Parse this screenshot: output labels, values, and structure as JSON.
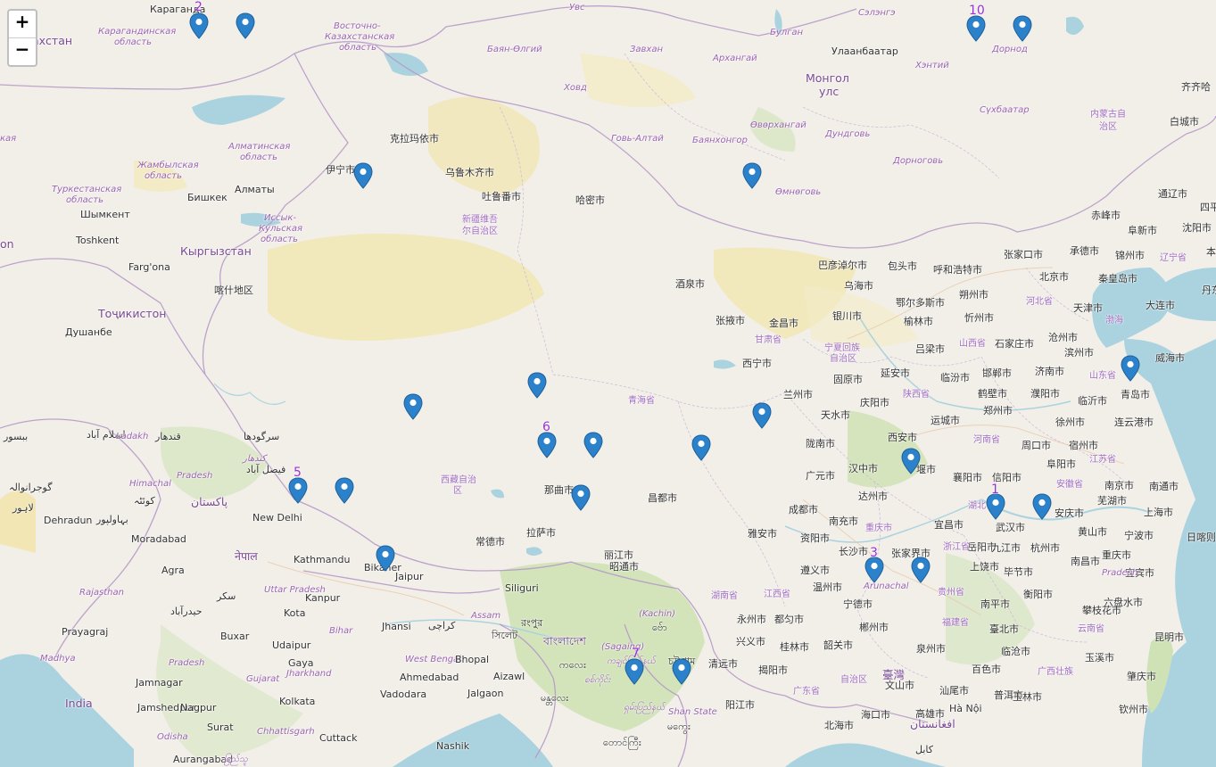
{
  "zoom": {
    "in_label": "+",
    "out_label": "−"
  },
  "labels": [
    {
      "t": "Караганда",
      "c": "city"
    },
    {
      "t": "ахстан",
      "c": "country"
    },
    {
      "t": "Карагандинская",
      "c": "region"
    },
    {
      "t": "область",
      "c": "region"
    },
    {
      "t": "Восточно-",
      "c": "region"
    },
    {
      "t": "Казахстанская",
      "c": "region"
    },
    {
      "t": "область",
      "c": "region"
    },
    {
      "t": "Баян-Өлгий",
      "c": "region"
    },
    {
      "t": "Увс",
      "c": "region"
    },
    {
      "t": "Завхан",
      "c": "region"
    },
    {
      "t": "Ховд",
      "c": "region"
    },
    {
      "t": "Булган",
      "c": "region"
    },
    {
      "t": "Сэлэнгэ",
      "c": "region"
    },
    {
      "t": "Улаанбаатар",
      "c": "city"
    },
    {
      "t": "Архангай",
      "c": "region"
    },
    {
      "t": "Монгол",
      "c": "country"
    },
    {
      "t": "улс",
      "c": "country"
    },
    {
      "t": "Хэнтий",
      "c": "region"
    },
    {
      "t": "Дорнод",
      "c": "region"
    },
    {
      "t": "Сүхбаатар",
      "c": "region"
    },
    {
      "t": "Өвөрхангай",
      "c": "region"
    },
    {
      "t": "Дундговь",
      "c": "region"
    },
    {
      "t": "Говь-Алтай",
      "c": "region"
    },
    {
      "t": "Баянхонгор",
      "c": "region"
    },
    {
      "t": "Дорноговь",
      "c": "region"
    },
    {
      "t": "Өмнөговь",
      "c": "region"
    },
    {
      "t": "内蒙古自",
      "c": "region-cn"
    },
    {
      "t": "治区",
      "c": "region-cn"
    },
    {
      "t": "白城市",
      "c": "city"
    },
    {
      "t": "齐齐哈",
      "c": "city"
    },
    {
      "t": "кая",
      "c": "region"
    },
    {
      "t": "克拉玛依市",
      "c": "city"
    },
    {
      "t": "Алматинская",
      "c": "region"
    },
    {
      "t": "область",
      "c": "region"
    },
    {
      "t": "Жамбылская",
      "c": "region"
    },
    {
      "t": "область",
      "c": "region"
    },
    {
      "t": "伊宁市",
      "c": "city"
    },
    {
      "t": "乌鲁木齐市",
      "c": "city"
    },
    {
      "t": "吐鲁番市",
      "c": "city"
    },
    {
      "t": "哈密市",
      "c": "city"
    },
    {
      "t": "Туркестанская",
      "c": "region"
    },
    {
      "t": "область",
      "c": "region"
    },
    {
      "t": "Бишкек",
      "c": "city"
    },
    {
      "t": "Алматы",
      "c": "city"
    },
    {
      "t": "Шымкент",
      "c": "city"
    },
    {
      "t": "Иссык-",
      "c": "region"
    },
    {
      "t": "Кульская",
      "c": "region"
    },
    {
      "t": "область",
      "c": "region"
    },
    {
      "t": "新疆维吾",
      "c": "region-cn"
    },
    {
      "t": "尔自治区",
      "c": "region-cn"
    },
    {
      "t": "Toshkent",
      "c": "city"
    },
    {
      "t": "Кыргызстан",
      "c": "country"
    },
    {
      "t": "on",
      "c": "country"
    },
    {
      "t": "Farg'ona",
      "c": "city"
    },
    {
      "t": "喀什地区",
      "c": "city"
    },
    {
      "t": "Тоҷикистон",
      "c": "country"
    },
    {
      "t": "Душанбе",
      "c": "city"
    },
    {
      "t": "通辽市",
      "c": "city"
    },
    {
      "t": "四平",
      "c": "city"
    },
    {
      "t": "赤峰市",
      "c": "city"
    },
    {
      "t": "阜新市",
      "c": "city"
    },
    {
      "t": "沈阳市",
      "c": "city"
    },
    {
      "t": "本",
      "c": "city"
    },
    {
      "t": "张家口市",
      "c": "city"
    },
    {
      "t": "承德市",
      "c": "city"
    },
    {
      "t": "锦州市",
      "c": "city"
    },
    {
      "t": "辽宁省",
      "c": "region-cn"
    },
    {
      "t": "巴彦淖尔市",
      "c": "city"
    },
    {
      "t": "包头市",
      "c": "city"
    },
    {
      "t": "呼和浩特市",
      "c": "city"
    },
    {
      "t": "北京市",
      "c": "city"
    },
    {
      "t": "秦皇岛市",
      "c": "city"
    },
    {
      "t": "丹东",
      "c": "city"
    },
    {
      "t": "乌海市",
      "c": "city"
    },
    {
      "t": "朔州市",
      "c": "city"
    },
    {
      "t": "河北省",
      "c": "region-cn"
    },
    {
      "t": "鄂尔多斯市",
      "c": "city"
    },
    {
      "t": "天津市",
      "c": "city"
    },
    {
      "t": "大连市",
      "c": "city"
    },
    {
      "t": "酒泉市",
      "c": "city"
    },
    {
      "t": "银川市",
      "c": "city"
    },
    {
      "t": "忻州市",
      "c": "city"
    },
    {
      "t": "渤海",
      "c": "region-cn"
    },
    {
      "t": "榆林市",
      "c": "city"
    },
    {
      "t": "沧州市",
      "c": "city"
    },
    {
      "t": "张掖市",
      "c": "city"
    },
    {
      "t": "金昌市",
      "c": "city"
    },
    {
      "t": "山西省",
      "c": "region-cn"
    },
    {
      "t": "石家庄市",
      "c": "city"
    },
    {
      "t": "甘肃省",
      "c": "region-cn"
    },
    {
      "t": "宁夏回族",
      "c": "region-cn"
    },
    {
      "t": "自治区",
      "c": "region-cn"
    },
    {
      "t": "吕梁市",
      "c": "city"
    },
    {
      "t": "滨州市",
      "c": "city"
    },
    {
      "t": "威海市",
      "c": "city"
    },
    {
      "t": "西宁市",
      "c": "city"
    },
    {
      "t": "固原市",
      "c": "city"
    },
    {
      "t": "延安市",
      "c": "city"
    },
    {
      "t": "临汾市",
      "c": "city"
    },
    {
      "t": "邯郸市",
      "c": "city"
    },
    {
      "t": "济南市",
      "c": "city"
    },
    {
      "t": "山东省",
      "c": "region-cn"
    },
    {
      "t": "兰州市",
      "c": "city"
    },
    {
      "t": "鹤壁市",
      "c": "city"
    },
    {
      "t": "濮阳市",
      "c": "city"
    },
    {
      "t": "青岛市",
      "c": "city"
    },
    {
      "t": "陕西省",
      "c": "region-cn"
    },
    {
      "t": "青海省",
      "c": "region-cn"
    },
    {
      "t": "庆阳市",
      "c": "city"
    },
    {
      "t": "临沂市",
      "c": "city"
    },
    {
      "t": "天水市",
      "c": "city"
    },
    {
      "t": "郑州市",
      "c": "city"
    },
    {
      "t": "运城市",
      "c": "city"
    },
    {
      "t": "徐州市",
      "c": "city"
    },
    {
      "t": "连云港市",
      "c": "city"
    },
    {
      "t": "西安市",
      "c": "city"
    },
    {
      "t": "陇南市",
      "c": "city"
    },
    {
      "t": "河南省",
      "c": "region-cn"
    },
    {
      "t": "周口市",
      "c": "city"
    },
    {
      "t": "宿州市",
      "c": "city"
    },
    {
      "t": "汉中市",
      "c": "city"
    },
    {
      "t": "堰市",
      "c": "city"
    },
    {
      "t": "阜阳市",
      "c": "city"
    },
    {
      "t": "江苏省",
      "c": "region-cn"
    },
    {
      "t": "西藏自治",
      "c": "region-cn"
    },
    {
      "t": "区",
      "c": "region-cn"
    },
    {
      "t": "广元市",
      "c": "city"
    },
    {
      "t": "襄阳市",
      "c": "city"
    },
    {
      "t": "信阳市",
      "c": "city"
    },
    {
      "t": "南京市",
      "c": "city"
    },
    {
      "t": "南通市",
      "c": "city"
    },
    {
      "t": "安徽省",
      "c": "region-cn"
    },
    {
      "t": "达州市",
      "c": "city"
    },
    {
      "t": "那曲市",
      "c": "city"
    },
    {
      "t": "昌都市",
      "c": "city"
    },
    {
      "t": "湖北",
      "c": "region-cn"
    },
    {
      "t": "芜湖市",
      "c": "city"
    },
    {
      "t": "成都市",
      "c": "city"
    },
    {
      "t": "武汉市",
      "c": "city"
    },
    {
      "t": "安庆市",
      "c": "city"
    },
    {
      "t": "上海市",
      "c": "city"
    },
    {
      "t": "南充市",
      "c": "city"
    },
    {
      "t": "宜昌市",
      "c": "city"
    },
    {
      "t": "黄山市",
      "c": "city"
    },
    {
      "t": "拉萨市",
      "c": "city"
    },
    {
      "t": "雅安市",
      "c": "city"
    },
    {
      "t": "资阳市",
      "c": "city"
    },
    {
      "t": "重庆市",
      "c": "region-cn"
    },
    {
      "t": "张家界市",
      "c": "city"
    },
    {
      "t": "岳阳市",
      "c": "city"
    },
    {
      "t": "九江市",
      "c": "city"
    },
    {
      "t": "杭州市",
      "c": "city"
    },
    {
      "t": "宁波市",
      "c": "city"
    },
    {
      "t": "日喀则市",
      "c": "city"
    },
    {
      "t": "常德市",
      "c": "city"
    },
    {
      "t": "浙江省",
      "c": "region-cn"
    },
    {
      "t": "重庆市",
      "c": "city"
    },
    {
      "t": "长沙市",
      "c": "city"
    },
    {
      "t": "上饶市",
      "c": "city"
    },
    {
      "t": "南昌市",
      "c": "city"
    },
    {
      "t": "宜宾市",
      "c": "city"
    },
    {
      "t": "毕节市",
      "c": "city"
    },
    {
      "t": "遵义市",
      "c": "city"
    },
    {
      "t": "温州市",
      "c": "city"
    },
    {
      "t": "Arunachal",
      "c": "region"
    },
    {
      "t": "Pradesh",
      "c": "region"
    },
    {
      "t": "丽江市",
      "c": "city"
    },
    {
      "t": "昭通市",
      "c": "city"
    },
    {
      "t": "湖南省",
      "c": "region-cn"
    },
    {
      "t": "江西省",
      "c": "region-cn"
    },
    {
      "t": "贵州省",
      "c": "region-cn"
    },
    {
      "t": "衡阳市",
      "c": "city"
    },
    {
      "t": "宁德市",
      "c": "city"
    },
    {
      "t": "南平市",
      "c": "city"
    },
    {
      "t": "六盘水市",
      "c": "city"
    },
    {
      "t": "攀枝花市",
      "c": "city"
    },
    {
      "t": "都匀市",
      "c": "city"
    },
    {
      "t": "永州市",
      "c": "city"
    },
    {
      "t": "郴州市",
      "c": "city"
    },
    {
      "t": "福建省",
      "c": "region-cn"
    },
    {
      "t": "臺北市",
      "c": "city"
    },
    {
      "t": "云南省",
      "c": "region-cn"
    },
    {
      "t": "昆明市",
      "c": "city"
    },
    {
      "t": "兴义市",
      "c": "city"
    },
    {
      "t": "桂林市",
      "c": "city"
    },
    {
      "t": "韶关市",
      "c": "city"
    },
    {
      "t": "泉州市",
      "c": "city"
    },
    {
      "t": "临沧市",
      "c": "city"
    },
    {
      "t": "玉溪市",
      "c": "city"
    },
    {
      "t": "清远市",
      "c": "city"
    },
    {
      "t": "揭阳市",
      "c": "city"
    },
    {
      "t": "百色市",
      "c": "city"
    },
    {
      "t": "广西壮族",
      "c": "region-cn"
    },
    {
      "t": "自治区",
      "c": "region-cn"
    },
    {
      "t": "臺灣",
      "c": "country"
    },
    {
      "t": "文山市",
      "c": "city"
    },
    {
      "t": "肇庆市",
      "c": "city"
    },
    {
      "t": "广东省",
      "c": "region-cn"
    },
    {
      "t": "汕尾市",
      "c": "city"
    },
    {
      "t": "普洱市",
      "c": "city"
    },
    {
      "t": "玉林市",
      "c": "city"
    },
    {
      "t": "阳江市",
      "c": "city"
    },
    {
      "t": "高雄市",
      "c": "city"
    },
    {
      "t": "Hà Nội",
      "c": "city"
    },
    {
      "t": "钦州市",
      "c": "city"
    },
    {
      "t": "北海市",
      "c": "city"
    },
    {
      "t": "海口市",
      "c": "city"
    },
    {
      "t": "افغانستان",
      "c": "country"
    },
    {
      "t": "کابل",
      "c": "city"
    },
    {
      "t": "ببسور",
      "c": "city"
    },
    {
      "t": "اسلام آباد",
      "c": "city"
    },
    {
      "t": "Ladakh",
      "c": "region"
    },
    {
      "t": "قندهار",
      "c": "city"
    },
    {
      "t": "سرگودھا",
      "c": "city"
    },
    {
      "t": "گوجرانوالہ",
      "c": "city"
    },
    {
      "t": "Himachal",
      "c": "region"
    },
    {
      "t": "Pradesh",
      "c": "region"
    },
    {
      "t": "کندهار",
      "c": "region"
    },
    {
      "t": "فيصل آباد",
      "c": "city"
    },
    {
      "t": "لاہور",
      "c": "city"
    },
    {
      "t": "کوئٹہ",
      "c": "city"
    },
    {
      "t": "پاکستان",
      "c": "country"
    },
    {
      "t": "Dehradun",
      "c": "city"
    },
    {
      "t": "بہاولپور",
      "c": "city"
    },
    {
      "t": "New Delhi",
      "c": "city"
    },
    {
      "t": "Moradabad",
      "c": "city"
    },
    {
      "t": "नेपाल",
      "c": "country"
    },
    {
      "t": "Kathmandu",
      "c": "city"
    },
    {
      "t": "Bikaner",
      "c": "city"
    },
    {
      "t": "Jaipur",
      "c": "city"
    },
    {
      "t": "Agra",
      "c": "city"
    },
    {
      "t": "سکر",
      "c": "city"
    },
    {
      "t": "Uttar Pradesh",
      "c": "region"
    },
    {
      "t": "Rajasthan",
      "c": "region"
    },
    {
      "t": "Kanpur",
      "c": "city"
    },
    {
      "t": "حیدرآباد",
      "c": "city"
    },
    {
      "t": "Kota",
      "c": "city"
    },
    {
      "t": "Prayagraj",
      "c": "city"
    },
    {
      "t": "Buxar",
      "c": "city"
    },
    {
      "t": "Bihar",
      "c": "region"
    },
    {
      "t": "Jhansi",
      "c": "city"
    },
    {
      "t": "کراچی",
      "c": "city"
    },
    {
      "t": "Udaipur",
      "c": "city"
    },
    {
      "t": "Madhya",
      "c": "region"
    },
    {
      "t": "Pradesh",
      "c": "region"
    },
    {
      "t": "Gaya",
      "c": "city"
    },
    {
      "t": "Jharkhand",
      "c": "region"
    },
    {
      "t": "West Bengal",
      "c": "region"
    },
    {
      "t": "Ahmedabad",
      "c": "city"
    },
    {
      "t": "Bhopal",
      "c": "city"
    },
    {
      "t": "Jamnagar",
      "c": "city"
    },
    {
      "t": "Gujarat",
      "c": "region"
    },
    {
      "t": "India",
      "c": "country"
    },
    {
      "t": "Jamshedpur",
      "c": "city"
    },
    {
      "t": "Kolkata",
      "c": "city"
    },
    {
      "t": "Vadodara",
      "c": "city"
    },
    {
      "t": "Jalgaon",
      "c": "city"
    },
    {
      "t": "Nagpur",
      "c": "city"
    },
    {
      "t": "Surat",
      "c": "city"
    },
    {
      "t": "Chhattisgarh",
      "c": "region"
    },
    {
      "t": "Odisha",
      "c": "region"
    },
    {
      "t": "Cuttack",
      "c": "city"
    },
    {
      "t": "Nashik",
      "c": "city"
    },
    {
      "t": "Aurangabad",
      "c": "city"
    },
    {
      "t": "ဧြည်သူ",
      "c": "region"
    },
    {
      "t": "Siliguri",
      "c": "city"
    },
    {
      "t": "Assam",
      "c": "region"
    },
    {
      "t": "রংপুর",
      "c": "city"
    },
    {
      "t": "সিলেট",
      "c": "city"
    },
    {
      "t": "বাংলাদেশ",
      "c": "country"
    },
    {
      "t": "Aizawl",
      "c": "city"
    },
    {
      "t": "ကလေး",
      "c": "city"
    },
    {
      "t": "စစ်ကိုင်း",
      "c": "region"
    },
    {
      "t": "(Sagaing)",
      "c": "region"
    },
    {
      "t": "ကချင်ပြည်နယ်",
      "c": "region"
    },
    {
      "t": "(Kachin)",
      "c": "region"
    },
    {
      "t": "ဗ်ော",
      "c": "city"
    },
    {
      "t": "চট্টগ্রাম",
      "c": "city"
    },
    {
      "t": "မန္တလေး",
      "c": "city"
    },
    {
      "t": "ရှမ်းပြည်နယ်",
      "c": "region"
    },
    {
      "t": "Shan State",
      "c": "region"
    },
    {
      "t": "မကွေး",
      "c": "city"
    },
    {
      "t": "တောင်ကြီး",
      "c": "city"
    }
  ],
  "markers": [
    {
      "id": "m01"
    },
    {
      "id": "m02"
    },
    {
      "id": "m03"
    },
    {
      "id": "m04"
    },
    {
      "id": "m05"
    },
    {
      "id": "m06"
    },
    {
      "id": "m07"
    },
    {
      "id": "m08"
    },
    {
      "id": "m09"
    },
    {
      "id": "m10"
    },
    {
      "id": "m11"
    },
    {
      "id": "m12"
    },
    {
      "id": "m13"
    },
    {
      "id": "m14"
    },
    {
      "id": "m15"
    },
    {
      "id": "m16"
    },
    {
      "id": "m17"
    },
    {
      "id": "m18"
    },
    {
      "id": "m19"
    },
    {
      "id": "m20"
    },
    {
      "id": "m21"
    },
    {
      "id": "m22"
    },
    {
      "id": "m23"
    },
    {
      "id": "m24"
    },
    {
      "id": "m25"
    }
  ],
  "cluster_numbers": [
    "2",
    "10",
    "6",
    "5",
    "1",
    "3",
    "7"
  ],
  "colors": {
    "land": "#f2efe9",
    "water": "#aad3df",
    "desert": "#f1e5b0",
    "forest": "#c9dfb1",
    "border": "#b79ac8",
    "marker": "#2b82cb",
    "cluster_text": "#9b30d9"
  }
}
